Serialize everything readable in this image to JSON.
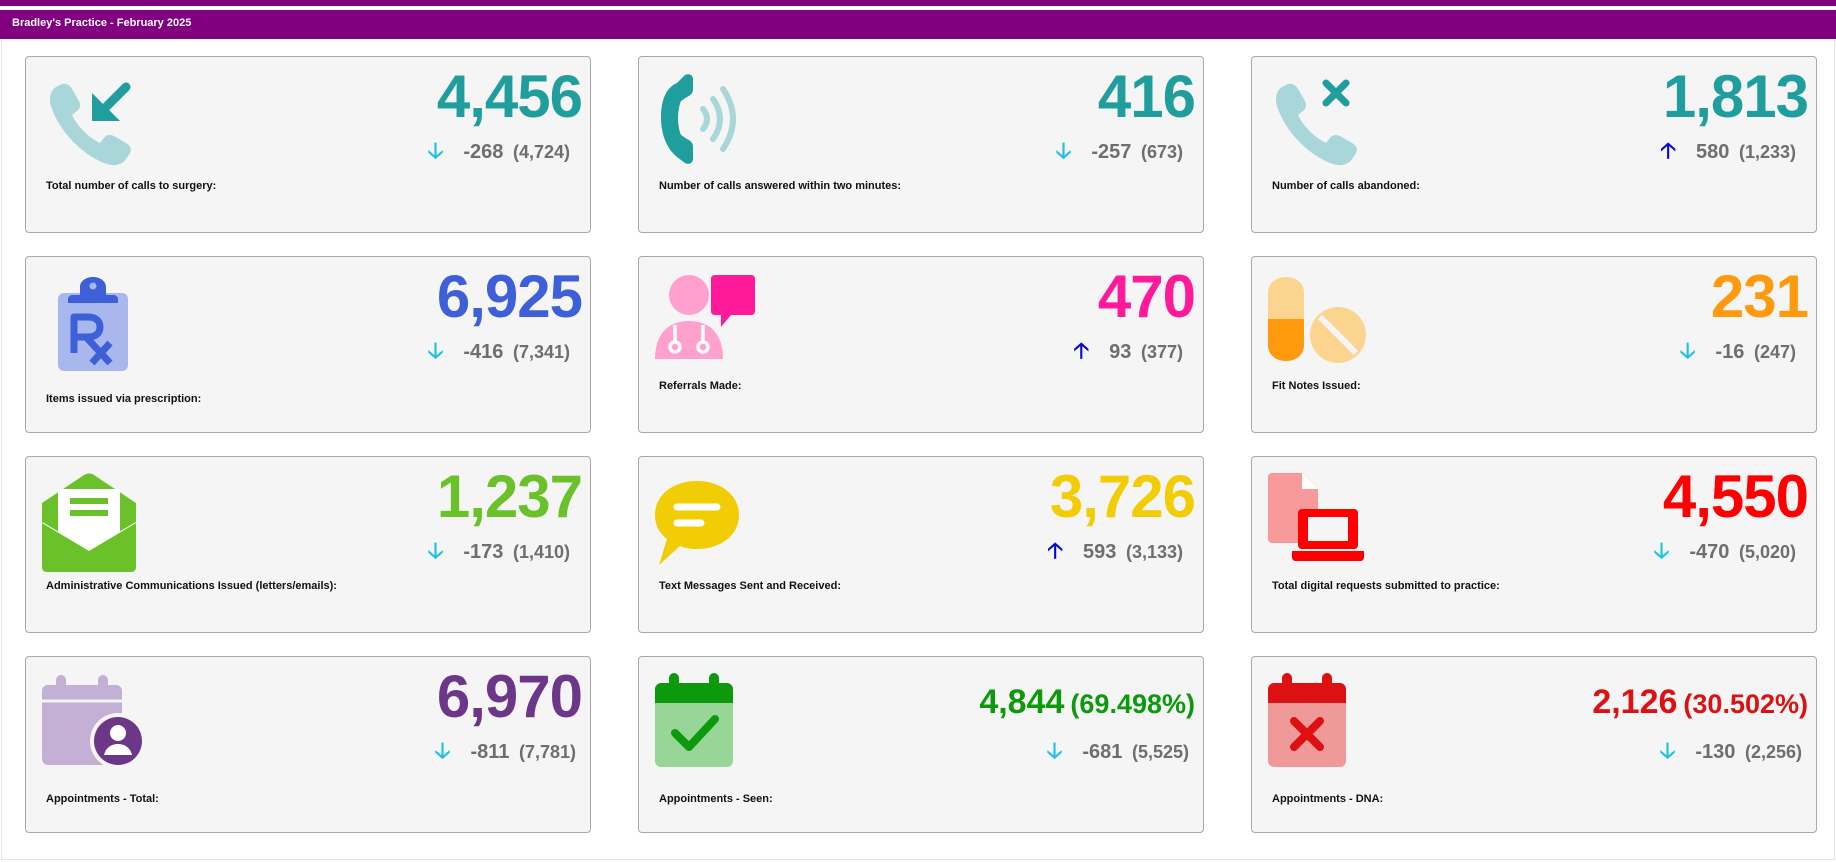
{
  "header": {
    "title": "Bradley's Practice - February 2025"
  },
  "colors": {
    "title_bar": "#800080",
    "arrow_down": "#1fc0ea",
    "arrow_up": "#0a0acc",
    "teal": "#209e9e",
    "blue": "#3d5fd8",
    "pink": "#ff1a9a",
    "orange": "#ff9a0e",
    "green": "#6bc12a",
    "yellow": "#f2cc05",
    "red": "#ff0000",
    "purple": "#6c3789",
    "dark_green": "#0c9a0c",
    "dark_red": "#dd1111"
  },
  "cards": [
    {
      "icon": "phone-incoming-icon",
      "value": "4,456",
      "direction": "down",
      "change": "-268",
      "previous": "(4,724)",
      "label": "Total number of calls to surgery:"
    },
    {
      "icon": "phone-ringing-icon",
      "value": "416",
      "direction": "down",
      "change": "-257",
      "previous": "(673)",
      "label": "Number of calls answered within two minutes:"
    },
    {
      "icon": "phone-missed-icon",
      "value": "1,813",
      "direction": "up",
      "change": "580",
      "previous": "(1,233)",
      "label": "Number of calls abandoned:"
    },
    {
      "icon": "prescription-clipboard-icon",
      "value": "6,925",
      "direction": "down",
      "change": "-416",
      "previous": "(7,341)",
      "label": "Items issued via prescription:"
    },
    {
      "icon": "doctor-chat-icon",
      "value": "470",
      "direction": "up",
      "change": "93",
      "previous": "(377)",
      "label": "Referrals Made:"
    },
    {
      "icon": "pills-icon",
      "value": "231",
      "direction": "down",
      "change": "-16",
      "previous": "(247)",
      "label": "Fit Notes Issued:"
    },
    {
      "icon": "envelope-open-icon",
      "value": "1,237",
      "direction": "down",
      "change": "-173",
      "previous": "(1,410)",
      "label": "Administrative Communications Issued (letters/emails):"
    },
    {
      "icon": "speech-bubble-icon",
      "value": "3,726",
      "direction": "up",
      "change": "593",
      "previous": "(3,133)",
      "label": "Text Messages Sent and Received:"
    },
    {
      "icon": "file-laptop-icon",
      "value": "4,550",
      "direction": "down",
      "change": "-470",
      "previous": "(5,020)",
      "label": "Total digital requests submitted to practice:"
    },
    {
      "icon": "calendar-user-icon",
      "value": "6,970",
      "direction": "down",
      "change": "-811",
      "previous": "(7,781)",
      "label": "Appointments - Total:"
    },
    {
      "icon": "calendar-check-icon",
      "value": "4,844",
      "percent": "(69.498%)",
      "direction": "down",
      "change": "-681",
      "previous": "(5,525)",
      "label": "Appointments - Seen:"
    },
    {
      "icon": "calendar-x-icon",
      "value": "2,126",
      "percent": "(30.502%)",
      "direction": "down",
      "change": "-130",
      "previous": "(2,256)",
      "label": "Appointments - DNA:"
    }
  ],
  "arrows": {
    "down": "🡣",
    "up": "🡡"
  }
}
